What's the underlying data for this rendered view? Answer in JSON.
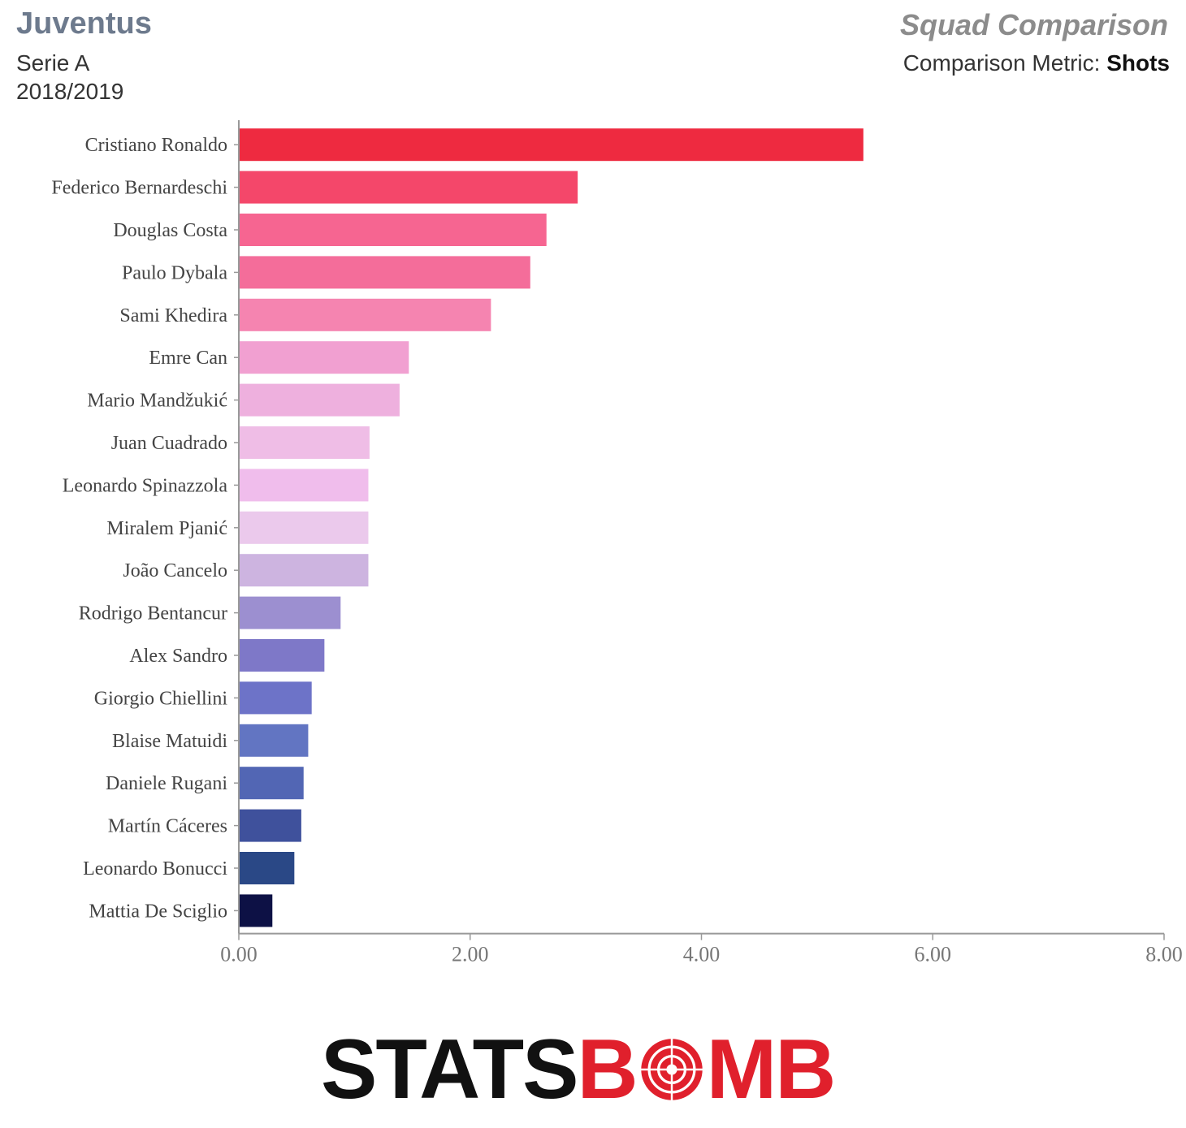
{
  "header": {
    "team": "Juventus",
    "competition": "Serie A",
    "season": "2018/2019",
    "title": "Squad Comparison",
    "metric_label": "Comparison Metric:",
    "metric_value": "Shots"
  },
  "logo": {
    "text_left": "STATS",
    "text_right_1": "B",
    "text_right_2": "MB",
    "icon": "bomb-target-icon"
  },
  "colors": {
    "axis": "#999999",
    "tick_text": "#777777",
    "label_text": "#444444"
  },
  "chart_data": {
    "type": "bar",
    "orientation": "horizontal",
    "categories": [
      "Cristiano Ronaldo",
      "Federico Bernardeschi",
      "Douglas Costa",
      "Paulo Dybala",
      "Sami Khedira",
      "Emre Can",
      "Mario Mandžukić",
      "Juan Cuadrado",
      "Leonardo Spinazzola",
      "Miralem Pjanić",
      "João Cancelo",
      "Rodrigo Bentancur",
      "Alex Sandro",
      "Giorgio Chiellini",
      "Blaise Matuidi",
      "Daniele Rugani",
      "Martín Cáceres",
      "Leonardo Bonucci",
      "Mattia De Sciglio"
    ],
    "values": [
      5.4,
      2.93,
      2.66,
      2.52,
      2.18,
      1.47,
      1.39,
      1.13,
      1.12,
      1.12,
      1.12,
      0.88,
      0.74,
      0.63,
      0.6,
      0.56,
      0.54,
      0.48,
      0.29
    ],
    "colors": [
      "#ee2a40",
      "#f4476a",
      "#f66591",
      "#f46d9a",
      "#f584b0",
      "#f1a0d1",
      "#eeb0de",
      "#efbde6",
      "#f0bdec",
      "#ebc9ec",
      "#cdb4e0",
      "#9c8fd0",
      "#7e78c8",
      "#6d73c8",
      "#6275c2",
      "#5266b4",
      "#3f519c",
      "#2a4886",
      "#0d1145"
    ],
    "xlim": [
      0,
      8
    ],
    "xticks": [
      "0.00",
      "2.00",
      "4.00",
      "6.00",
      "8.00"
    ],
    "xtick_values": [
      0,
      2,
      4,
      6,
      8
    ],
    "grid": false
  }
}
